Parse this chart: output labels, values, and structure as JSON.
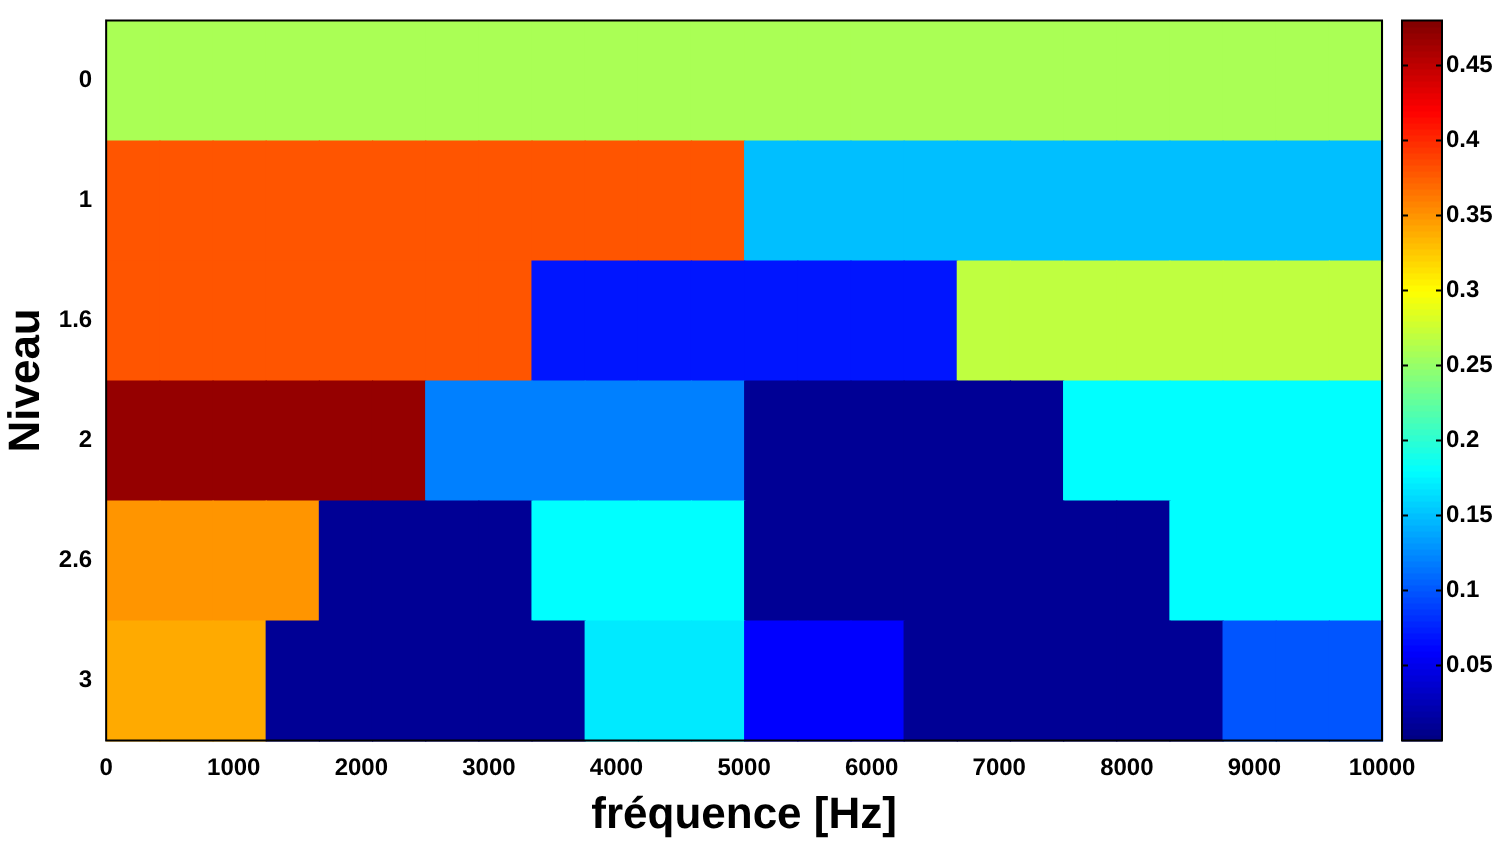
{
  "chart_data": {
    "type": "heatmap",
    "xlabel": "fréquence [Hz]",
    "ylabel": "Niveau",
    "x": [
      208.3,
      625,
      1041.7,
      1458.3,
      1875,
      2291.7,
      2708.3,
      3125,
      3541.7,
      3958.3,
      4375,
      4791.7,
      5208.3,
      5625,
      6041.7,
      6458.3,
      6875,
      7291.7,
      7708.3,
      8125,
      8541.7,
      8958.3,
      9375,
      9791.7
    ],
    "xlim": [
      0,
      10000
    ],
    "xticks": [
      0,
      1000,
      2000,
      3000,
      4000,
      5000,
      6000,
      7000,
      8000,
      9000,
      10000
    ],
    "y_categories": [
      "0",
      "1",
      "1.6",
      "2",
      "2.6",
      "3"
    ],
    "cells": [
      [
        0.26,
        0.26,
        0.26,
        0.26,
        0.26,
        0.26,
        0.26,
        0.26,
        0.26,
        0.26,
        0.26,
        0.26,
        0.26,
        0.26,
        0.26,
        0.26,
        0.26,
        0.26,
        0.26,
        0.26,
        0.26,
        0.26,
        0.26,
        0.26
      ],
      [
        0.38,
        0.38,
        0.38,
        0.38,
        0.38,
        0.38,
        0.38,
        0.38,
        0.38,
        0.38,
        0.38,
        0.38,
        0.15,
        0.15,
        0.15,
        0.15,
        0.15,
        0.15,
        0.15,
        0.15,
        0.15,
        0.15,
        0.15,
        0.15
      ],
      [
        0.38,
        0.38,
        0.38,
        0.38,
        0.38,
        0.38,
        0.38,
        0.38,
        0.07,
        0.07,
        0.07,
        0.07,
        0.07,
        0.07,
        0.07,
        0.07,
        0.27,
        0.27,
        0.27,
        0.27,
        0.27,
        0.27,
        0.27,
        0.27
      ],
      [
        0.47,
        0.47,
        0.47,
        0.47,
        0.47,
        0.47,
        0.12,
        0.12,
        0.12,
        0.12,
        0.12,
        0.12,
        0.01,
        0.01,
        0.01,
        0.01,
        0.01,
        0.01,
        0.18,
        0.18,
        0.18,
        0.18,
        0.18,
        0.18
      ],
      [
        0.35,
        0.35,
        0.35,
        0.35,
        0.01,
        0.01,
        0.01,
        0.01,
        0.18,
        0.18,
        0.18,
        0.18,
        0.01,
        0.01,
        0.01,
        0.01,
        0.01,
        0.01,
        0.01,
        0.01,
        0.18,
        0.18,
        0.18,
        0.18
      ],
      [
        0.34,
        0.34,
        0.34,
        0.01,
        0.01,
        0.01,
        0.01,
        0.01,
        0.01,
        0.17,
        0.17,
        0.17,
        0.06,
        0.06,
        0.06,
        0.01,
        0.01,
        0.01,
        0.01,
        0.01,
        0.01,
        0.1,
        0.1,
        0.1
      ]
    ],
    "clim": [
      0,
      0.48
    ],
    "cticks": [
      0.05,
      0.1,
      0.15,
      0.2,
      0.25,
      0.3,
      0.35,
      0.4,
      0.45
    ]
  }
}
